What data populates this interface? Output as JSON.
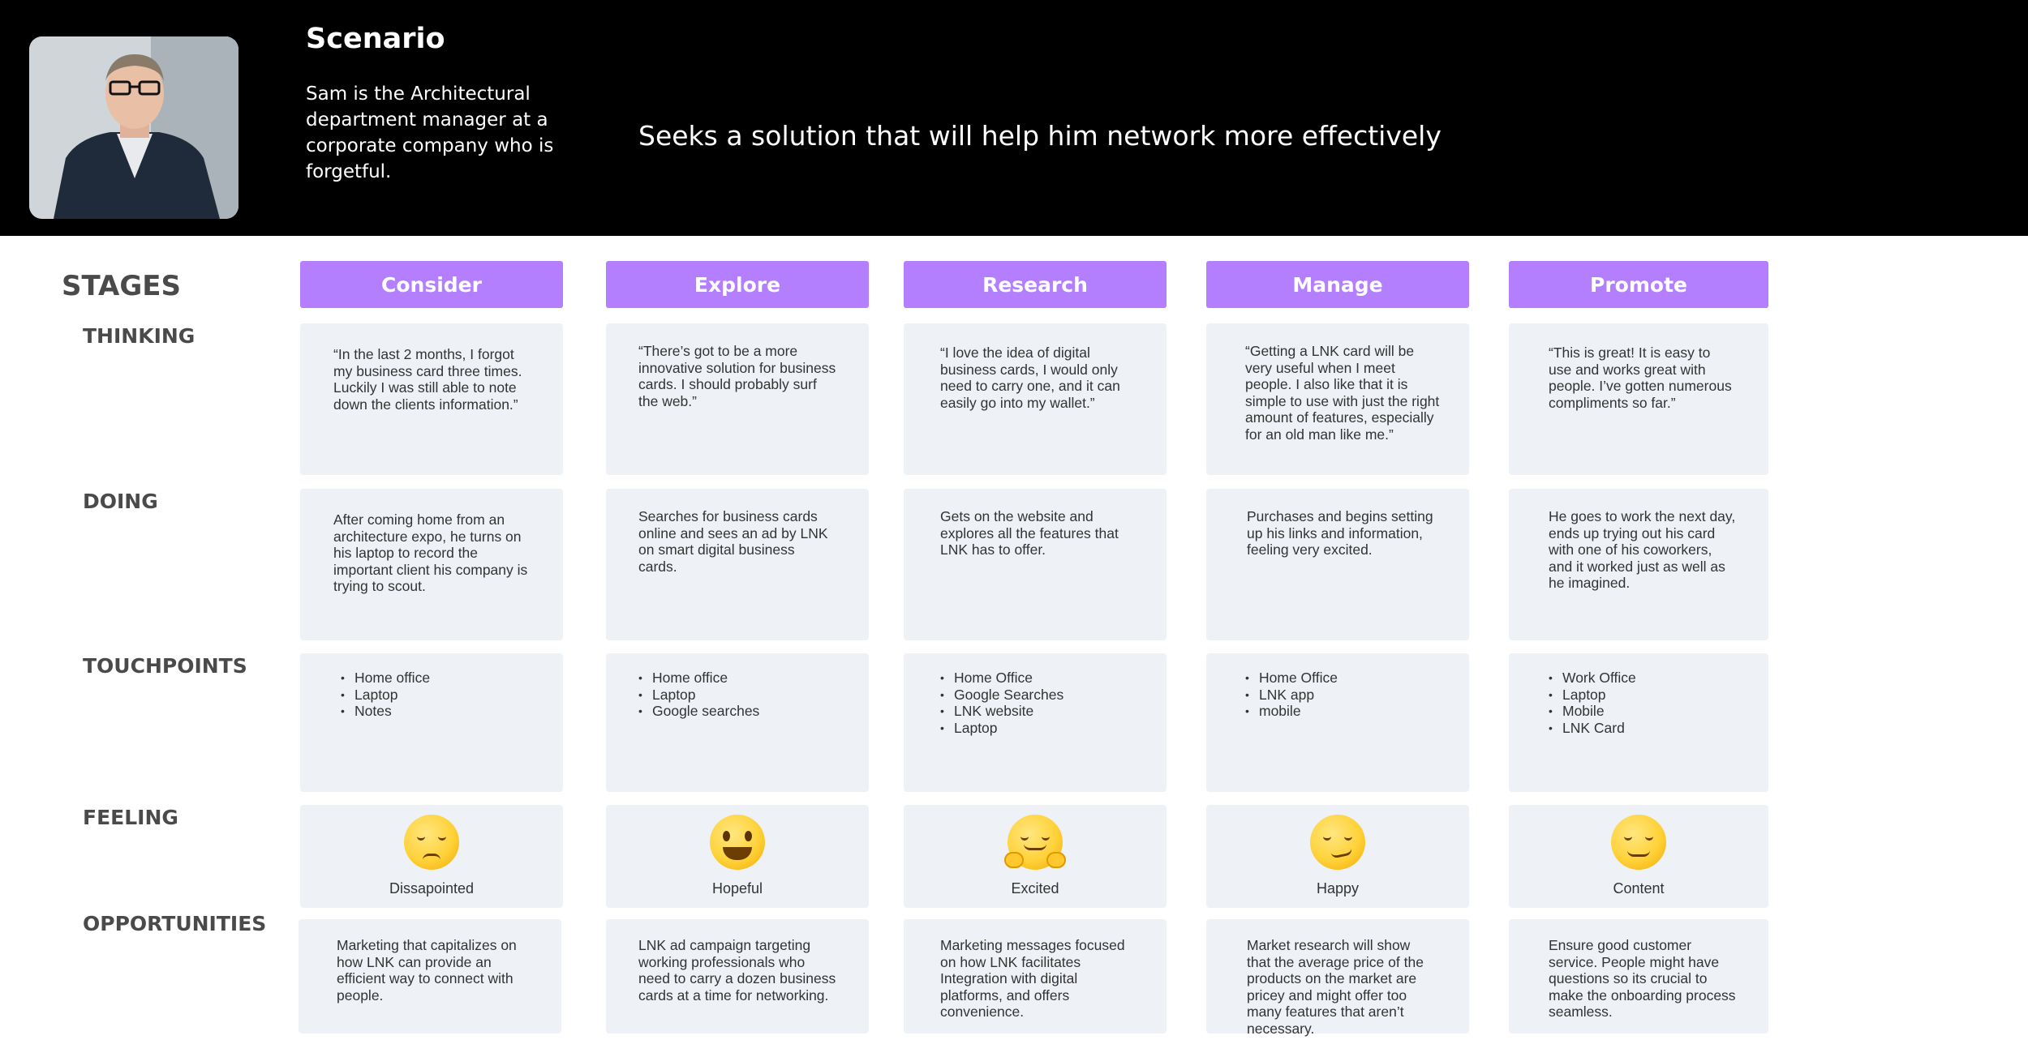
{
  "header": {
    "title": "Scenario",
    "description": "Sam is the Architectural department manager at a corporate company who is forgetful.",
    "goal": "Seeks a solution that will help him network more effectively"
  },
  "labels": {
    "stages": "STAGES",
    "thinking": "THINKING",
    "doing": "DOING",
    "touchpoints": "TOUCHPOINTS",
    "feeling": "FEELING",
    "opportunities": "OPPORTUNITIES"
  },
  "stages": [
    {
      "name": "Consider",
      "thinking": "“In the last 2 months, I forgot my business card three times. Luckily I was still able to note down the clients information.”",
      "doing": "After coming home from an architecture expo, he turns on his laptop to record the important client his company is trying to scout.",
      "touchpoints": [
        "Home office",
        "Laptop",
        "Notes"
      ],
      "feeling": {
        "label": "Dissapointed",
        "icon": "disappointed-face-icon"
      },
      "opportunity": "Marketing that capitalizes on how LNK can provide an efficient way to connect with people."
    },
    {
      "name": "Explore",
      "thinking": "“There’s got to be a more innovative solution for business cards. I should probably surf the web.”",
      "doing": "Searches for business cards online and sees an ad by LNK on smart digital business cards.",
      "touchpoints": [
        "Home office",
        "Laptop",
        "Google searches"
      ],
      "feeling": {
        "label": "Hopeful",
        "icon": "grinning-face-icon"
      },
      "opportunity": "LNK ad campaign targeting working professionals who need to carry a dozen business cards at a time for networking."
    },
    {
      "name": "Research",
      "thinking": "“I love the idea of digital business cards, I would only need to carry one, and it can easily go into my wallet.”",
      "doing": "Gets on the website and explores all the features that LNK has to offer.",
      "touchpoints": [
        "Home Office",
        "Google Searches",
        "LNK website",
        "Laptop"
      ],
      "feeling": {
        "label": "Excited",
        "icon": "hugging-face-icon"
      },
      "opportunity": "Marketing messages focused on how LNK facilitates Integration with digital platforms, and offers convenience."
    },
    {
      "name": "Manage",
      "thinking": "“Getting a LNK card will be very useful when I meet people. I also like that it is simple to use with just the right amount of features, especially for an old man like me.”",
      "doing": "Purchases and begins setting up his links and information, feeling very excited.",
      "touchpoints": [
        "Home Office",
        "LNK app",
        "mobile"
      ],
      "feeling": {
        "label": "Happy",
        "icon": "smirking-face-icon"
      },
      "opportunity": "Market research will show that the average price of the products on the market are pricey and might offer too many features that aren’t necessary."
    },
    {
      "name": "Promote",
      "thinking": "“This is great! It is easy to use and works great with people. I’ve gotten numerous compliments so far.”",
      "doing": "He goes to work the next day, ends up trying out his card with one of his coworkers, and it worked just as well as he imagined.",
      "touchpoints": [
        "Work Office",
        "Laptop",
        "Mobile",
        "LNK Card"
      ],
      "feeling": {
        "label": "Content",
        "icon": "relieved-face-icon"
      },
      "opportunity": "Ensure good customer service. People might have questions so its crucial to make the onboarding process seamless."
    }
  ]
}
